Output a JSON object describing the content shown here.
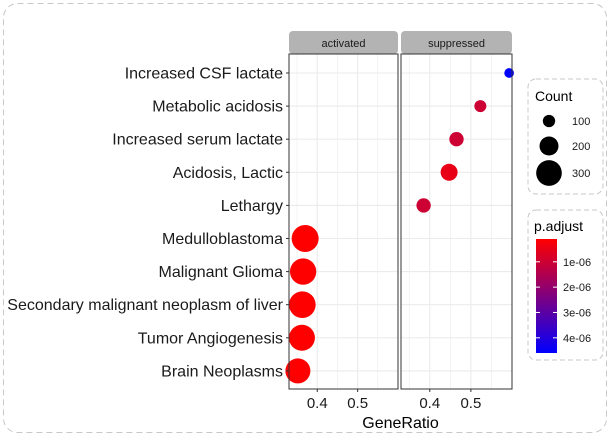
{
  "chart_data": {
    "type": "scatter",
    "xlabel": "GeneRatio",
    "categories": [
      "Increased CSF lactate",
      "Metabolic acidosis",
      "Increased serum lactate",
      "Acidosis, Lactic",
      "Lethargy",
      "Medulloblastoma",
      "Malignant Glioma",
      "Secondary malignant neoplasm of liver",
      "Tumor Angiogenesis",
      "Brain Neoplasms"
    ],
    "xlim": [
      0.33,
      0.6
    ],
    "x_ticks": [
      0.4,
      0.5
    ],
    "x_tick_labels": [
      "0.4",
      "0.5"
    ],
    "grid": true,
    "panels": [
      {
        "name": "activated",
        "points": [
          {
            "term": "Medulloblastoma",
            "x": 0.37,
            "count": 320,
            "p_adjust": 1e-07
          },
          {
            "term": "Malignant Glioma",
            "x": 0.365,
            "count": 310,
            "p_adjust": 1e-07
          },
          {
            "term": "Secondary malignant neoplasm of liver",
            "x": 0.363,
            "count": 315,
            "p_adjust": 1e-07
          },
          {
            "term": "Tumor Angiogenesis",
            "x": 0.362,
            "count": 305,
            "p_adjust": 1e-07
          },
          {
            "term": "Brain Neoplasms",
            "x": 0.352,
            "count": 290,
            "p_adjust": 1e-07
          }
        ]
      },
      {
        "name": "suppressed",
        "points": [
          {
            "term": "Increased CSF lactate",
            "x": 0.593,
            "count": 60,
            "p_adjust": 4.6e-06
          },
          {
            "term": "Metabolic acidosis",
            "x": 0.523,
            "count": 95,
            "p_adjust": 1e-06
          },
          {
            "term": "Increased serum lactate",
            "x": 0.465,
            "count": 130,
            "p_adjust": 1e-06
          },
          {
            "term": "Acidosis, Lactic",
            "x": 0.447,
            "count": 170,
            "p_adjust": 5e-07
          },
          {
            "term": "Lethargy",
            "x": 0.385,
            "count": 130,
            "p_adjust": 1e-06
          }
        ]
      }
    ],
    "legend_size": {
      "title": "Count",
      "breaks": [
        100,
        200,
        300
      ],
      "labels": [
        "100",
        "200",
        "300"
      ],
      "position": "right"
    },
    "legend_color": {
      "title": "p.adjust",
      "low_color": "#FF0000",
      "high_color": "#0000FF",
      "limits": [
        1e-07,
        4.6e-06
      ],
      "breaks": [
        1e-06,
        2e-06,
        3e-06,
        4e-06
      ],
      "labels": [
        "1e-06",
        "2e-06",
        "3e-06",
        "4e-06"
      ],
      "position": "right"
    },
    "colors": {
      "panel_strip": "#B3B3B3",
      "gridline": "#EBEBEB",
      "panel_border": "#333333"
    }
  }
}
